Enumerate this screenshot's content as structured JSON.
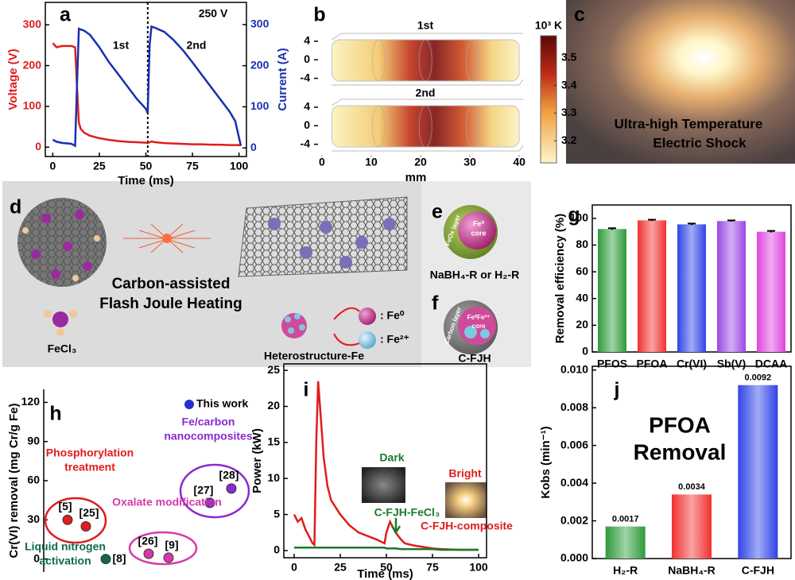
{
  "chart_data": [
    {
      "type": "line",
      "panel": "a",
      "annotations": [
        "250 V",
        "1st",
        "2nd"
      ],
      "xlabel": "Time (ms)",
      "ylabel": "Voltage (V)",
      "y2label": "Current (A)",
      "x": [
        0,
        2,
        5,
        10,
        12,
        13,
        14,
        15,
        17,
        20,
        25,
        30,
        35,
        40,
        45,
        50,
        51,
        52,
        53,
        55,
        60,
        65,
        70,
        75,
        80,
        85,
        90,
        95,
        98,
        100,
        101
      ],
      "series": [
        {
          "color": "#e01c1c",
          "values": [
            255,
            245,
            248,
            248,
            245,
            150,
            60,
            45,
            35,
            28,
            22,
            18,
            15,
            13,
            12,
            11,
            10,
            12,
            14,
            12,
            10,
            9,
            8,
            7,
            7,
            6,
            6,
            5,
            5,
            5,
            5
          ]
        },
        {
          "color": "#1a2fb0",
          "axis": "y2",
          "values": [
            20,
            15,
            12,
            10,
            5,
            150,
            290,
            288,
            285,
            275,
            245,
            210,
            180,
            150,
            120,
            95,
            85,
            250,
            295,
            292,
            282,
            262,
            237,
            208,
            178,
            148,
            118,
            88,
            65,
            25,
            5
          ]
        }
      ],
      "divider_x": 51,
      "xlim": [
        -4,
        104
      ],
      "xticks": [
        0,
        25,
        50,
        75,
        100
      ],
      "ylim": [
        -23,
        355
      ],
      "yticks": [
        0,
        100,
        200,
        300
      ],
      "y2lim": [
        -21,
        354
      ],
      "y2ticks": [
        0,
        100,
        200,
        300
      ]
    },
    {
      "type": "heatmap",
      "panel": "b",
      "annotations": [
        "1st",
        "2nd"
      ],
      "xlabel": "mm",
      "xlim": [
        -1.6,
        40.3
      ],
      "xticks": [
        0,
        10,
        20,
        30,
        40
      ],
      "ylim": [
        -6.3,
        5.7
      ],
      "yticks": [
        4,
        0,
        -4
      ],
      "colorbar_label": "10³ K",
      "clim": [
        3.12,
        3.58
      ],
      "cticks": [
        3.2,
        3.3,
        3.4,
        3.5
      ]
    },
    {
      "type": "bar",
      "panel": "g",
      "ylabel": "Removal efficiency (%)",
      "categories": [
        "PFOS",
        "PFOA",
        "Cr(VI)",
        "Sb(V)",
        "DCAA"
      ],
      "values": [
        92,
        98.5,
        95.5,
        98,
        90
      ],
      "errors": [
        0.6,
        0.5,
        0.6,
        0.5,
        0.6
      ],
      "colors": [
        "#2e9a3a",
        "#f23030",
        "#2f44e6",
        "#9a48e6",
        "#e044e0"
      ],
      "ylim": [
        0,
        110
      ],
      "yticks": [
        0,
        20,
        40,
        60,
        80,
        100
      ]
    },
    {
      "type": "scatter",
      "panel": "h",
      "ylabel": "Cr(VI) removal (mg Cr/g Fe)",
      "legend": "This work",
      "legend_color": "#2233cc",
      "categories": [
        "[5]",
        "[25]",
        "[26]",
        "[9]",
        "[27]",
        "[28]",
        "[8]"
      ],
      "values": [
        30,
        25,
        4,
        1,
        43,
        54,
        0
      ],
      "colors": [
        "#e01c1c",
        "#e01c1c",
        "#d63aa8",
        "#d63aa8",
        "#8a2ad0",
        "#8a2ad0",
        "#0e6a4a"
      ],
      "groups": [
        {
          "label": [
            "Phosphorylation",
            "treatment"
          ],
          "color": "#e01c1c"
        },
        {
          "label": [
            "Fe/carbon",
            "nanocomposites"
          ],
          "color": "#8a2ad0"
        },
        {
          "label": [
            "Oxalate modification"
          ],
          "color": "#d63aa8"
        },
        {
          "label": [
            "Liquid nitrogen",
            "activation"
          ],
          "color": "#0e6a4a"
        }
      ],
      "ylim": [
        -10,
        130
      ],
      "yticks": [
        0,
        30,
        60,
        90,
        120
      ]
    },
    {
      "type": "line",
      "panel": "i",
      "annotations": [
        "Dark",
        "Bright"
      ],
      "xlabel": "Time (ms)",
      "ylabel": "Power (kW)",
      "x": [
        0,
        1,
        2,
        4,
        6,
        8,
        10,
        11,
        12,
        13,
        14,
        16,
        18,
        20,
        25,
        30,
        35,
        40,
        45,
        49,
        50,
        52,
        55,
        58,
        60,
        65,
        70,
        75,
        80,
        90,
        100
      ],
      "series": [
        {
          "name": "C-FJH-composite",
          "color": "#e01c1c",
          "values": [
            5,
            4.5,
            4,
            4.5,
            3,
            2,
            1,
            0.8,
            15,
            23.5,
            20,
            13,
            9,
            7,
            5,
            3.5,
            2.5,
            2,
            1.5,
            1,
            2.5,
            4,
            2.5,
            1.5,
            1,
            0.7,
            0.5,
            0.3,
            0.2,
            0.1,
            0.1
          ]
        },
        {
          "name": "C-FJH-FeCl₃",
          "color": "#1a7a2a",
          "values": [
            0.4,
            0.4,
            0.4,
            0.4,
            0.4,
            0.4,
            0.4,
            0.4,
            0.4,
            0.4,
            0.4,
            0.4,
            0.4,
            0.4,
            0.4,
            0.4,
            0.4,
            0.4,
            0.4,
            0.4,
            0.3,
            0.3,
            0.3,
            0.2,
            0.2,
            0.2,
            0.2,
            0.2,
            0.1,
            0.1,
            0.1
          ]
        }
      ],
      "xlim": [
        -5.6,
        104.3
      ],
      "xticks": [
        0,
        25,
        50,
        75,
        100
      ],
      "ylim": [
        -1,
        25.9
      ],
      "yticks": [
        0,
        5,
        10,
        15,
        20,
        25
      ]
    },
    {
      "type": "bar",
      "panel": "j",
      "title": [
        "PFOA",
        "Removal"
      ],
      "ylabel": "Kobs (min⁻¹)",
      "categories": [
        "H₂-R",
        "NaBH₄-R",
        "C-FJH"
      ],
      "values": [
        0.0017,
        0.0034,
        0.0092
      ],
      "show_values": true,
      "colors": [
        "#2e9a3a",
        "#f23030",
        "#2f44e6"
      ],
      "ylim": [
        0,
        0.0102
      ],
      "yticks": [
        {
          "value": 0,
          "label": "0.000"
        },
        {
          "value": 0.002,
          "label": "0.002"
        },
        {
          "value": 0.004,
          "label": "0.004"
        },
        {
          "value": 0.006,
          "label": "0.006"
        },
        {
          "value": 0.008,
          "label": "0.008"
        },
        {
          "value": 0.01,
          "label": "0.010"
        }
      ]
    }
  ],
  "panels": {
    "c": {
      "panel": "c",
      "caption": [
        "Ultra-high Temperature",
        "Electric Shock"
      ]
    },
    "d": {
      "panel": "d",
      "process": [
        "Carbon-assisted",
        "Flash Joule Heating"
      ],
      "precursor": "FeCl₃",
      "product": "Heterostructure-Fe",
      "legend": [
        ": Fe⁰",
        ": Fe²⁺"
      ]
    },
    "e": {
      "panel": "e",
      "shell": "FeOx layer",
      "core": [
        "Fe⁰",
        "core"
      ],
      "caption": "NaBH₄-R or H₂-R"
    },
    "f": {
      "panel": "f",
      "shell": "Carbon layer",
      "core": [
        "Fe⁰Fe²⁺",
        "core"
      ],
      "caption": "C-FJH"
    }
  }
}
